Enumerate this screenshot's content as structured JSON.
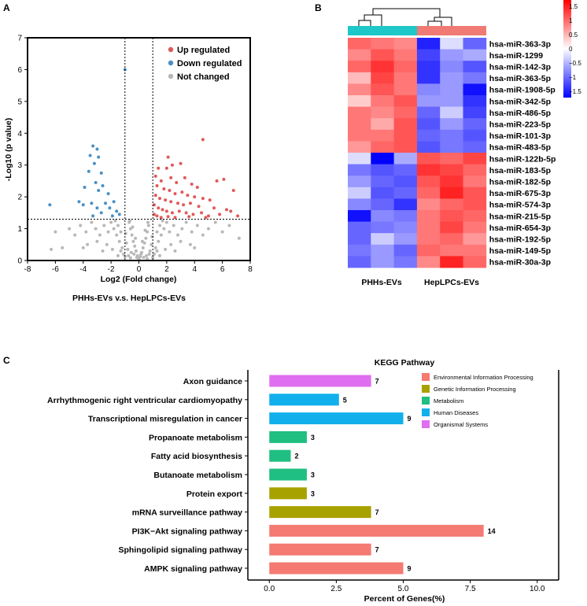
{
  "panels": {
    "a": "A",
    "b": "B",
    "c": "C"
  },
  "colors": {
    "up": "#e05a5a",
    "down": "#4a90c4",
    "not_changed": "#b8b8b8",
    "heat_high": "#ff0000",
    "heat_mid": "#ffffff",
    "heat_low": "#0000ff",
    "group_phh": "#1ec8c8",
    "group_hep": "#f07a74",
    "kegg_env": "#f47a72",
    "kegg_gen": "#a8a200",
    "kegg_met": "#1fbf82",
    "kegg_hum": "#11b0ec",
    "kegg_org": "#e06ef0",
    "highlight": "#e02020"
  },
  "chart_data": [
    {
      "type": "scatter",
      "title": "",
      "xlabel": "Log2 (Fold change)",
      "ylabel": "-Log10 (p value)",
      "caption": "PHHs-EVs v.s. HepLPCs-EVs",
      "xlim": [
        -8,
        8
      ],
      "ylim": [
        0,
        7
      ],
      "xticks": [
        "-8",
        "-6",
        "-4",
        "-2",
        "0",
        "2",
        "4",
        "6",
        "8"
      ],
      "yticks": [
        "0",
        "1",
        "2",
        "3",
        "4",
        "5",
        "6",
        "7"
      ],
      "thresholds": {
        "x": [
          -1,
          1
        ],
        "y": 1.3
      },
      "legend": [
        "Up regulated",
        "Down regulated",
        "Not changed"
      ],
      "series": [
        {
          "name": "Up regulated",
          "points": [
            [
              4.6,
              3.8
            ],
            [
              2.1,
              3.25
            ],
            [
              2.4,
              3.0
            ],
            [
              3.0,
              3.05
            ],
            [
              2.0,
              2.9
            ],
            [
              1.4,
              2.9
            ],
            [
              6.1,
              2.55
            ],
            [
              6.8,
              2.2
            ],
            [
              5.6,
              2.5
            ],
            [
              1.2,
              2.65
            ],
            [
              1.6,
              2.5
            ],
            [
              2.3,
              2.6
            ],
            [
              2.7,
              2.45
            ],
            [
              3.3,
              2.6
            ],
            [
              3.8,
              2.4
            ],
            [
              4.2,
              2.3
            ],
            [
              1.3,
              2.35
            ],
            [
              1.8,
              2.25
            ],
            [
              2.2,
              2.2
            ],
            [
              2.6,
              2.1
            ],
            [
              3.1,
              2.15
            ],
            [
              3.5,
              2.05
            ],
            [
              4.0,
              2.0
            ],
            [
              4.6,
              1.95
            ],
            [
              5.1,
              1.9
            ],
            [
              1.2,
              2.05
            ],
            [
              1.5,
              1.95
            ],
            [
              1.9,
              1.9
            ],
            [
              2.3,
              1.85
            ],
            [
              2.8,
              1.8
            ],
            [
              3.2,
              1.75
            ],
            [
              3.7,
              1.8
            ],
            [
              4.3,
              1.7
            ],
            [
              5.4,
              1.65
            ],
            [
              6.3,
              1.6
            ],
            [
              7.1,
              1.4
            ],
            [
              1.1,
              1.75
            ],
            [
              1.4,
              1.65
            ],
            [
              1.7,
              1.6
            ],
            [
              2.0,
              1.55
            ],
            [
              2.4,
              1.5
            ],
            [
              2.9,
              1.55
            ],
            [
              3.4,
              1.5
            ],
            [
              3.9,
              1.45
            ],
            [
              4.5,
              1.5
            ],
            [
              5.0,
              1.4
            ],
            [
              5.8,
              1.45
            ],
            [
              6.6,
              1.55
            ],
            [
              1.1,
              1.45
            ],
            [
              1.3,
              1.4
            ],
            [
              1.6,
              1.35
            ],
            [
              2.1,
              1.38
            ],
            [
              2.6,
              1.35
            ],
            [
              3.6,
              1.38
            ],
            [
              4.8,
              1.35
            ]
          ]
        },
        {
          "name": "Down regulated",
          "points": [
            [
              -1.0,
              6.0
            ],
            [
              -3.3,
              3.6
            ],
            [
              -3.0,
              3.5
            ],
            [
              -3.5,
              3.3
            ],
            [
              -2.9,
              3.25
            ],
            [
              -3.2,
              3.05
            ],
            [
              -2.7,
              2.75
            ],
            [
              -3.6,
              2.8
            ],
            [
              -3.1,
              2.45
            ],
            [
              -2.6,
              2.35
            ],
            [
              -3.9,
              2.3
            ],
            [
              -2.2,
              2.1
            ],
            [
              -2.9,
              2.2
            ],
            [
              -6.4,
              1.75
            ],
            [
              -4.3,
              1.85
            ],
            [
              -4.0,
              1.75
            ],
            [
              -3.4,
              1.8
            ],
            [
              -2.4,
              1.8
            ],
            [
              -1.8,
              1.85
            ],
            [
              -3.0,
              1.65
            ],
            [
              -2.1,
              1.65
            ],
            [
              -1.6,
              1.55
            ],
            [
              -2.7,
              1.5
            ],
            [
              -1.4,
              1.45
            ],
            [
              -3.3,
              1.4
            ],
            [
              -1.9,
              1.4
            ]
          ]
        },
        {
          "name": "Not changed",
          "points": [
            [
              0,
              0.05
            ],
            [
              0.1,
              0.12
            ],
            [
              -0.1,
              0.15
            ],
            [
              0.2,
              0.25
            ],
            [
              -0.2,
              0.3
            ],
            [
              0.3,
              0.4
            ],
            [
              -0.3,
              0.45
            ],
            [
              0.4,
              0.55
            ],
            [
              -0.4,
              0.6
            ],
            [
              0.5,
              0.7
            ],
            [
              -0.5,
              0.8
            ],
            [
              0.6,
              0.9
            ],
            [
              -0.6,
              1.0
            ],
            [
              0.7,
              1.1
            ],
            [
              -0.7,
              1.2
            ],
            [
              0.8,
              0.3
            ],
            [
              -0.8,
              0.35
            ],
            [
              0.9,
              0.5
            ],
            [
              -0.9,
              0.55
            ],
            [
              0.95,
              0.75
            ],
            [
              -0.95,
              0.85
            ],
            [
              0.15,
              0.2
            ],
            [
              -0.15,
              0.1
            ],
            [
              0.35,
              0.1
            ],
            [
              -0.35,
              0.2
            ],
            [
              0.55,
              0.15
            ],
            [
              -0.55,
              0.25
            ],
            [
              0.75,
              0.2
            ],
            [
              -0.75,
              0.15
            ],
            [
              1.2,
              0.4
            ],
            [
              1.4,
              0.6
            ],
            [
              1.6,
              0.8
            ],
            [
              1.8,
              1.0
            ],
            [
              2.0,
              1.2
            ],
            [
              1.3,
              0.9
            ],
            [
              1.5,
              1.1
            ],
            [
              1.7,
              1.25
            ],
            [
              2.2,
              0.9
            ],
            [
              2.5,
              1.1
            ],
            [
              2.8,
              0.8
            ],
            [
              3.1,
              1.0
            ],
            [
              3.4,
              1.2
            ],
            [
              3.8,
              0.9
            ],
            [
              4.2,
              1.1
            ],
            [
              4.6,
              0.8
            ],
            [
              5.0,
              1.0
            ],
            [
              5.5,
              1.2
            ],
            [
              6.0,
              0.9
            ],
            [
              6.5,
              1.1
            ],
            [
              7.2,
              0.7
            ],
            [
              2.3,
              0.5
            ],
            [
              3.0,
              0.6
            ],
            [
              3.7,
              0.5
            ],
            [
              1.1,
              0.2
            ],
            [
              1.3,
              0.3
            ],
            [
              1.9,
              0.35
            ],
            [
              2.6,
              0.3
            ],
            [
              4.0,
              0.4
            ],
            [
              1.5,
              0.15
            ],
            [
              -1.2,
              0.4
            ],
            [
              -1.4,
              0.6
            ],
            [
              -1.6,
              0.8
            ],
            [
              -1.8,
              1.0
            ],
            [
              -2.0,
              1.2
            ],
            [
              -1.3,
              0.9
            ],
            [
              -1.5,
              1.1
            ],
            [
              -1.7,
              1.25
            ],
            [
              -2.2,
              0.9
            ],
            [
              -2.5,
              1.1
            ],
            [
              -2.8,
              0.8
            ],
            [
              -3.1,
              1.0
            ],
            [
              -3.4,
              1.2
            ],
            [
              -3.8,
              0.9
            ],
            [
              -4.2,
              1.1
            ],
            [
              -4.6,
              0.8
            ],
            [
              -5.0,
              1.0
            ],
            [
              -5.5,
              0.4
            ],
            [
              -6.0,
              0.9
            ],
            [
              -6.3,
              0.35
            ],
            [
              -2.3,
              0.5
            ],
            [
              -3.0,
              0.6
            ],
            [
              -3.7,
              0.5
            ],
            [
              -1.1,
              0.2
            ],
            [
              -1.3,
              0.3
            ],
            [
              -1.9,
              0.35
            ],
            [
              -2.6,
              0.3
            ],
            [
              -4.0,
              0.4
            ],
            [
              -1.5,
              0.15
            ],
            [
              0.6,
              0.05
            ],
            [
              -0.6,
              0.08
            ],
            [
              1.0,
              0.1
            ],
            [
              -1.0,
              0.12
            ],
            [
              0.25,
              0.6
            ],
            [
              -0.25,
              0.7
            ],
            [
              0.45,
              0.95
            ],
            [
              -0.45,
              1.05
            ],
            [
              0.65,
              1.2
            ],
            [
              -0.65,
              1.25
            ]
          ]
        }
      ]
    },
    {
      "type": "heatmap",
      "groups": [
        "PHHs-EVs",
        "HepLPCs-EVs"
      ],
      "colorbar": {
        "ticks": [
          "1.5",
          "1",
          "0.5",
          "0",
          "−0.5",
          "−1",
          "−1.5"
        ],
        "range": [
          -1.5,
          1.5
        ]
      },
      "rows": [
        "hsa-miR-363-3p",
        "hsa-miR-1299",
        "hsa-miR-142-3p",
        "hsa-miR-363-5p",
        "hsa-miR-1908-5p",
        "hsa-miR-342-5p",
        "hsa-miR-486-5p",
        "hsa-miR-223-5p",
        "hsa-miR-101-3p",
        "hsa-miR-483-5p",
        "hsa-miR-122b-5p",
        "hsa-miR-183-5p",
        "hsa-miR-182-5p",
        "hsa-miR-675-3p",
        "hsa-miR-574-3p",
        "hsa-miR-215-5p",
        "hsa-miR-654-3p",
        "hsa-miR-192-5p",
        "hsa-miR-149-5p",
        "hsa-miR-30a-3p"
      ],
      "values": [
        [
          0.9,
          0.8,
          0.7,
          -1.3,
          -0.2,
          -0.9
        ],
        [
          0.7,
          1.0,
          0.8,
          -1.1,
          -0.6,
          -0.5
        ],
        [
          0.9,
          1.2,
          0.9,
          -1.2,
          -0.7,
          -1.0
        ],
        [
          0.4,
          1.1,
          0.8,
          -1.2,
          -0.6,
          -0.8
        ],
        [
          0.7,
          1.0,
          0.8,
          -0.7,
          -0.6,
          -1.4
        ],
        [
          0.3,
          0.8,
          1.0,
          -0.6,
          -0.6,
          -1.2
        ],
        [
          0.8,
          0.7,
          0.9,
          -0.9,
          -0.3,
          -1.1
        ],
        [
          0.8,
          0.5,
          1.0,
          -1.0,
          -0.6,
          -0.9
        ],
        [
          0.8,
          0.8,
          1.0,
          -0.9,
          -0.8,
          -1.0
        ],
        [
          0.6,
          0.9,
          1.0,
          -1.0,
          -0.8,
          -0.9
        ],
        [
          -0.2,
          -1.5,
          -0.5,
          1.0,
          0.9,
          1.1
        ],
        [
          -0.8,
          -1.0,
          -0.9,
          1.2,
          1.1,
          0.9
        ],
        [
          -0.6,
          -0.9,
          -1.0,
          1.0,
          1.2,
          0.8
        ],
        [
          -0.3,
          -1.0,
          -0.9,
          0.9,
          1.3,
          1.0
        ],
        [
          -0.7,
          -0.9,
          -1.2,
          0.7,
          0.9,
          1.0
        ],
        [
          -1.4,
          -0.7,
          -0.8,
          0.8,
          1.0,
          0.9
        ],
        [
          -0.9,
          -0.8,
          -0.7,
          0.8,
          1.1,
          0.8
        ],
        [
          -0.9,
          -0.3,
          -0.6,
          0.8,
          0.9,
          0.6
        ],
        [
          -0.8,
          -0.6,
          -0.9,
          0.9,
          0.8,
          0.8
        ],
        [
          -0.9,
          -0.6,
          -0.8,
          0.7,
          1.3,
          0.9
        ]
      ]
    },
    {
      "type": "bar",
      "orientation": "horizontal",
      "title": "KEGG Pathway",
      "xlabel": "Percent of Genes(%)",
      "xlim": [
        -0.8,
        10.8
      ],
      "xticks": [
        "0.0",
        "2.5",
        "5.0",
        "7.5",
        "10.0"
      ],
      "legend": [
        "Environmental Information Processing",
        "Genetic Information Processing",
        "Metabolism",
        "Human Diseases",
        "Organismal Systems"
      ],
      "categories": [
        "Axon guidance",
        "Arrhythmogenic right ventricular cardiomyopathy",
        "Transcriptional misregulation in cancer",
        "Propanoate metabolism",
        "Fatty acid biosynthesis",
        "Butanoate metabolism",
        "Protein export",
        "mRNA surveillance pathway",
        "PI3K−Akt signaling pathway",
        "Sphingolipid signaling pathway",
        "AMPK signaling pathway"
      ],
      "percent": [
        3.8,
        2.6,
        5.0,
        1.4,
        0.8,
        1.4,
        1.4,
        3.8,
        8.0,
        3.8,
        5.0
      ],
      "counts": [
        "7",
        "5",
        "9",
        "3",
        "2",
        "3",
        "3",
        "7",
        "14",
        "7",
        "9"
      ],
      "class": [
        "Organismal Systems",
        "Human Diseases",
        "Human Diseases",
        "Metabolism",
        "Metabolism",
        "Metabolism",
        "Genetic Information Processing",
        "Genetic Information Processing",
        "Environmental Information Processing",
        "Environmental Information Processing",
        "Environmental Information Processing"
      ],
      "highlighted": "PI3K−Akt signaling pathway"
    }
  ]
}
